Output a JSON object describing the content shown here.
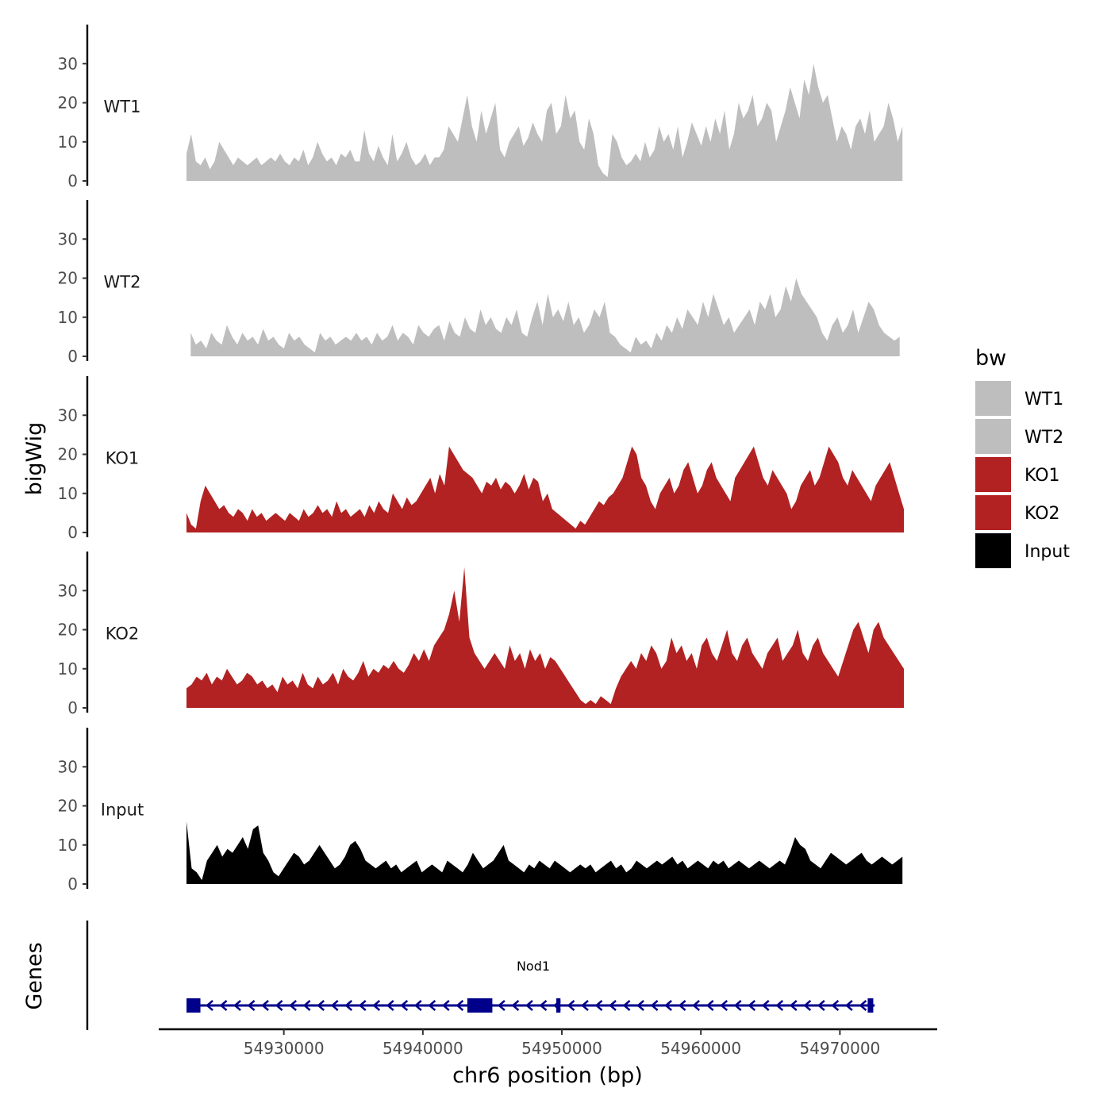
{
  "chart_data": {
    "type": "area",
    "ylabel": "bigWig",
    "xlabel": "chr6 position (bp)",
    "gene_track_label": "Genes",
    "xlim": [
      54921000,
      54977000
    ],
    "x_ticks": [
      54930000,
      54940000,
      54950000,
      54960000,
      54970000
    ],
    "x_tick_labels": [
      "54930000",
      "54940000",
      "54950000",
      "54960000",
      "54970000"
    ],
    "ylim": [
      0,
      40
    ],
    "y_ticks": [
      0,
      10,
      20,
      30
    ],
    "y_tick_labels": [
      "0",
      "10",
      "20",
      "30"
    ],
    "legend": {
      "title": "bw",
      "entries": [
        {
          "label": "WT1",
          "color": "#bebebe"
        },
        {
          "label": "WT2",
          "color": "#bebebe"
        },
        {
          "label": "KO1",
          "color": "#b22222"
        },
        {
          "label": "KO2",
          "color": "#b22222"
        },
        {
          "label": "Input",
          "color": "#000000"
        }
      ]
    },
    "series": [
      {
        "name": "WT1",
        "color": "#bebebe",
        "x_start": 54923000,
        "x_end": 54974500,
        "step": 500,
        "values": [
          7,
          12,
          5,
          4,
          6,
          3,
          5,
          10,
          8,
          6,
          4,
          6,
          5,
          4,
          5,
          6,
          4,
          5,
          6,
          5,
          7,
          5,
          4,
          6,
          5,
          8,
          4,
          6,
          10,
          7,
          5,
          6,
          4,
          7,
          6,
          8,
          5,
          5,
          13,
          7,
          5,
          9,
          6,
          4,
          12,
          5,
          7,
          10,
          6,
          4,
          5,
          7,
          4,
          6,
          6,
          8,
          14,
          12,
          10,
          16,
          22,
          14,
          10,
          18,
          12,
          16,
          20,
          8,
          6,
          10,
          12,
          14,
          9,
          11,
          15,
          12,
          10,
          18,
          20,
          12,
          14,
          22,
          16,
          18,
          10,
          8,
          16,
          12,
          4,
          2,
          1,
          12,
          10,
          6,
          4,
          5,
          7,
          5,
          10,
          6,
          8,
          14,
          10,
          12,
          8,
          14,
          6,
          10,
          15,
          12,
          9,
          14,
          10,
          16,
          12,
          18,
          8,
          12,
          20,
          16,
          18,
          22,
          14,
          16,
          20,
          18,
          10,
          14,
          18,
          24,
          20,
          16,
          26,
          22,
          30,
          24,
          20,
          22,
          16,
          10,
          14,
          12,
          8,
          14,
          16,
          12,
          18,
          10,
          12,
          14,
          20,
          16,
          10,
          14
        ]
      },
      {
        "name": "WT2",
        "color": "#bebebe",
        "x_start": 54923300,
        "x_end": 54974300,
        "step": 500,
        "values": [
          6,
          3,
          4,
          2,
          6,
          4,
          3,
          8,
          5,
          3,
          6,
          4,
          5,
          3,
          7,
          4,
          5,
          3,
          2,
          6,
          4,
          5,
          3,
          2,
          1,
          6,
          4,
          5,
          3,
          4,
          5,
          4,
          6,
          4,
          5,
          3,
          6,
          4,
          5,
          8,
          4,
          6,
          5,
          3,
          8,
          6,
          5,
          7,
          8,
          4,
          9,
          6,
          5,
          10,
          7,
          6,
          12,
          8,
          10,
          7,
          6,
          10,
          8,
          12,
          6,
          5,
          10,
          14,
          8,
          16,
          10,
          12,
          9,
          14,
          8,
          10,
          6,
          8,
          12,
          10,
          14,
          6,
          5,
          3,
          2,
          1,
          5,
          3,
          4,
          2,
          6,
          4,
          8,
          6,
          10,
          7,
          12,
          10,
          8,
          14,
          10,
          16,
          12,
          8,
          10,
          6,
          8,
          10,
          12,
          8,
          14,
          12,
          16,
          10,
          12,
          18,
          14,
          20,
          16,
          14,
          12,
          10,
          6,
          4,
          8,
          10,
          6,
          8,
          12,
          6,
          10,
          14,
          12,
          8,
          6,
          5,
          4,
          5
        ]
      },
      {
        "name": "KO1",
        "color": "#b22222",
        "x_start": 54923000,
        "x_end": 54974600,
        "step": 500,
        "values": [
          5,
          2,
          1,
          8,
          12,
          10,
          8,
          6,
          7,
          5,
          4,
          6,
          5,
          3,
          6,
          4,
          5,
          3,
          4,
          5,
          4,
          3,
          5,
          4,
          3,
          6,
          4,
          5,
          7,
          5,
          6,
          4,
          8,
          5,
          6,
          4,
          5,
          6,
          4,
          7,
          5,
          8,
          6,
          5,
          10,
          8,
          6,
          9,
          7,
          8,
          10,
          12,
          14,
          10,
          15,
          12,
          22,
          20,
          18,
          16,
          15,
          14,
          12,
          10,
          13,
          12,
          14,
          11,
          13,
          12,
          10,
          12,
          15,
          11,
          14,
          13,
          8,
          10,
          6,
          5,
          4,
          3,
          2,
          1,
          3,
          2,
          4,
          6,
          8,
          7,
          9,
          10,
          12,
          14,
          18,
          22,
          20,
          14,
          12,
          8,
          6,
          10,
          12,
          14,
          10,
          12,
          16,
          18,
          14,
          10,
          12,
          16,
          18,
          14,
          12,
          10,
          8,
          14,
          16,
          18,
          20,
          22,
          18,
          14,
          12,
          16,
          14,
          12,
          10,
          6,
          8,
          12,
          14,
          16,
          12,
          14,
          18,
          22,
          20,
          18,
          14,
          12,
          16,
          14,
          12,
          10,
          8,
          12,
          14,
          16,
          18,
          14,
          10,
          6
        ]
      },
      {
        "name": "KO2",
        "color": "#b22222",
        "x_start": 54923000,
        "x_end": 54974600,
        "step": 500,
        "values": [
          5,
          6,
          8,
          7,
          9,
          6,
          8,
          7,
          10,
          8,
          6,
          7,
          9,
          8,
          6,
          7,
          5,
          6,
          4,
          8,
          6,
          7,
          5,
          9,
          6,
          5,
          8,
          6,
          7,
          9,
          6,
          10,
          8,
          7,
          9,
          12,
          8,
          10,
          9,
          11,
          10,
          12,
          10,
          9,
          11,
          14,
          12,
          15,
          12,
          16,
          18,
          20,
          24,
          30,
          22,
          36,
          18,
          14,
          12,
          10,
          12,
          14,
          12,
          10,
          16,
          12,
          14,
          10,
          15,
          12,
          14,
          10,
          13,
          12,
          10,
          8,
          6,
          4,
          2,
          1,
          2,
          1,
          3,
          2,
          1,
          5,
          8,
          10,
          12,
          10,
          14,
          12,
          16,
          14,
          10,
          12,
          18,
          14,
          16,
          12,
          14,
          10,
          16,
          18,
          14,
          12,
          16,
          20,
          14,
          12,
          16,
          18,
          14,
          12,
          10,
          14,
          16,
          18,
          12,
          14,
          16,
          20,
          14,
          12,
          16,
          18,
          14,
          12,
          10,
          8,
          12,
          16,
          20,
          22,
          18,
          14,
          20,
          22,
          18,
          16,
          14,
          12,
          10
        ]
      },
      {
        "name": "Input",
        "color": "#000000",
        "x_start": 54923000,
        "x_end": 54974500,
        "step": 500,
        "values": [
          16,
          4,
          3,
          1,
          6,
          8,
          10,
          7,
          9,
          8,
          10,
          12,
          9,
          14,
          15,
          8,
          6,
          3,
          2,
          4,
          6,
          8,
          7,
          5,
          6,
          8,
          10,
          8,
          6,
          4,
          5,
          7,
          10,
          11,
          9,
          6,
          5,
          4,
          5,
          6,
          4,
          5,
          3,
          4,
          5,
          6,
          3,
          4,
          5,
          4,
          3,
          6,
          5,
          4,
          3,
          5,
          8,
          6,
          4,
          5,
          6,
          8,
          10,
          6,
          5,
          4,
          3,
          5,
          4,
          6,
          5,
          4,
          6,
          5,
          4,
          3,
          4,
          5,
          4,
          5,
          3,
          4,
          5,
          6,
          4,
          5,
          3,
          4,
          6,
          5,
          4,
          5,
          6,
          5,
          6,
          7,
          5,
          6,
          4,
          5,
          6,
          5,
          4,
          6,
          5,
          6,
          4,
          5,
          6,
          5,
          4,
          5,
          6,
          5,
          4,
          5,
          6,
          5,
          8,
          12,
          10,
          9,
          6,
          5,
          4,
          6,
          8,
          7,
          6,
          5,
          6,
          7,
          8,
          6,
          5,
          6,
          7,
          6,
          5,
          6,
          7
        ]
      }
    ],
    "gene": {
      "name": "Nod1",
      "start": 54923000,
      "end": 54972500,
      "strand": "-",
      "exons": [
        {
          "start": 54923000,
          "end": 54924000
        },
        {
          "start": 54943200,
          "end": 54945000
        },
        {
          "start": 54949600,
          "end": 54949900
        },
        {
          "start": 54972000,
          "end": 54972400
        }
      ],
      "color": "#00008b"
    }
  }
}
